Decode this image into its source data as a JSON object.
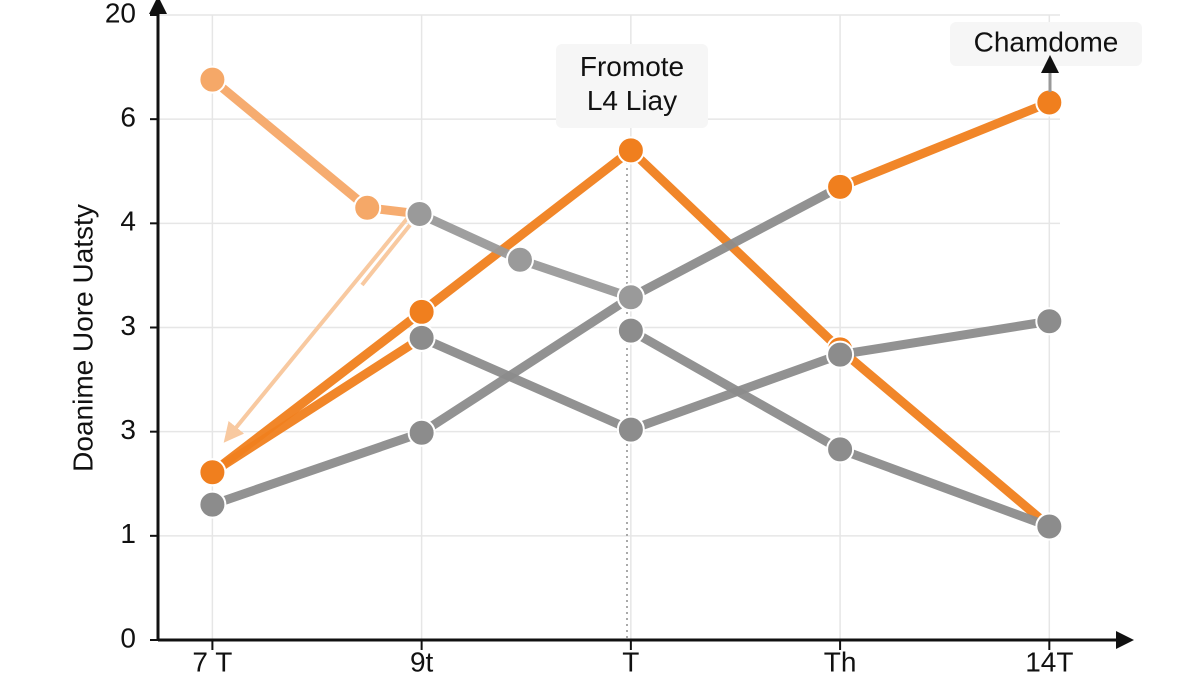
{
  "chart_data": {
    "type": "line",
    "y_label": "Doanime Uore Uatsty",
    "annotations": [
      "Fromote\nL4 Liay",
      "Chamdome"
    ],
    "xlim": [
      -0.26,
      4.29
    ],
    "xticks": [
      {
        "value": 0,
        "label": "7 T"
      },
      {
        "value": 1,
        "label": "9t"
      },
      {
        "value": 2,
        "label": "T"
      },
      {
        "value": 3,
        "label": "Th"
      },
      {
        "value": 4,
        "label": "14T"
      }
    ],
    "ylim": [
      0,
      6
    ],
    "yticks": [
      0,
      1,
      {
        "value": 2,
        "label": "3"
      },
      3,
      4,
      {
        "value": 5,
        "label": "6"
      },
      {
        "value": 6,
        "label": "20"
      }
    ],
    "grid": true,
    "series": [
      {
        "color": "#f07f1e",
        "x": [
          0,
          1,
          2,
          3,
          4
        ],
        "values": [
          1.61,
          3.15,
          4.7,
          2.79,
          1.09
        ]
      },
      {
        "color": "#f5a868",
        "x": [
          0,
          0.74,
          0.99
        ],
        "values": [
          5.38,
          4.15,
          4.09
        ]
      },
      {
        "color": "#f07f1e",
        "x": [
          0,
          1
        ],
        "values": [
          1.61,
          2.9
        ]
      },
      {
        "color": "#8c8c8c",
        "x": [
          0,
          1,
          2,
          3
        ],
        "values": [
          1.3,
          1.99,
          3.29,
          4.35
        ]
      },
      {
        "color": "#9a9a9a",
        "x": [
          0.99,
          1.47,
          2
        ],
        "values": [
          4.09,
          3.65,
          3.29
        ]
      },
      {
        "color": "#8c8c8c",
        "x": [
          1,
          2,
          3,
          4
        ],
        "values": [
          2.9,
          2.02,
          2.74,
          3.06
        ]
      },
      {
        "color": "#8c8c8c",
        "x": [
          2,
          3,
          4
        ],
        "values": [
          2.97,
          1.83,
          1.09
        ]
      },
      {
        "color": "#f07f1e",
        "x": [
          3,
          4
        ],
        "values": [
          4.35,
          5.16
        ]
      }
    ]
  }
}
